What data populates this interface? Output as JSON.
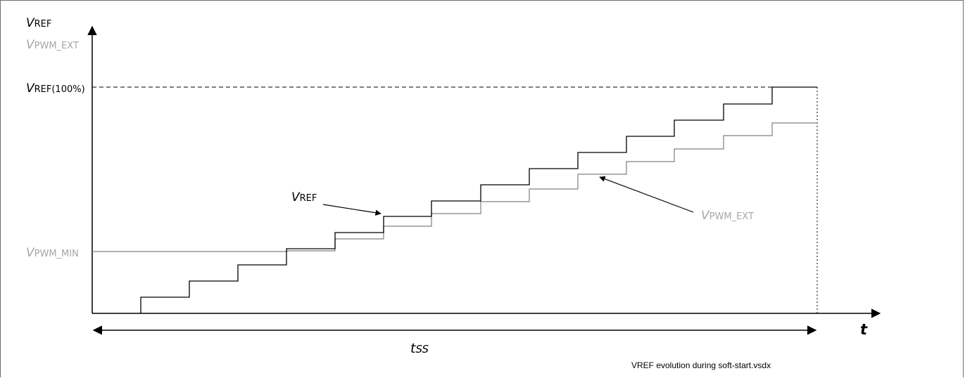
{
  "labels": {
    "y_axis_main": {
      "v": "V",
      "sub": "REF"
    },
    "y_axis_pwm": {
      "v": "V",
      "sub": "PWM_EXT"
    },
    "vref_100": {
      "v": "V",
      "sub": "REF(100%)"
    },
    "vpwm_min": {
      "v": "V",
      "sub": "PWM_MIN"
    },
    "vref_annotation": {
      "v": "V",
      "sub": "REF"
    },
    "vpwm_annotation": {
      "v": "V",
      "sub": "PWM_EXT"
    },
    "t_axis": "t",
    "tss": {
      "t": "t",
      "sub": "SS"
    }
  },
  "footer": "VREF evolution during soft-start.vsdx",
  "colors": {
    "vref_trace": "#000000",
    "vpwm_trace": "#808080",
    "gray_label": "#a6a6a6",
    "axis": "#000000"
  }
}
